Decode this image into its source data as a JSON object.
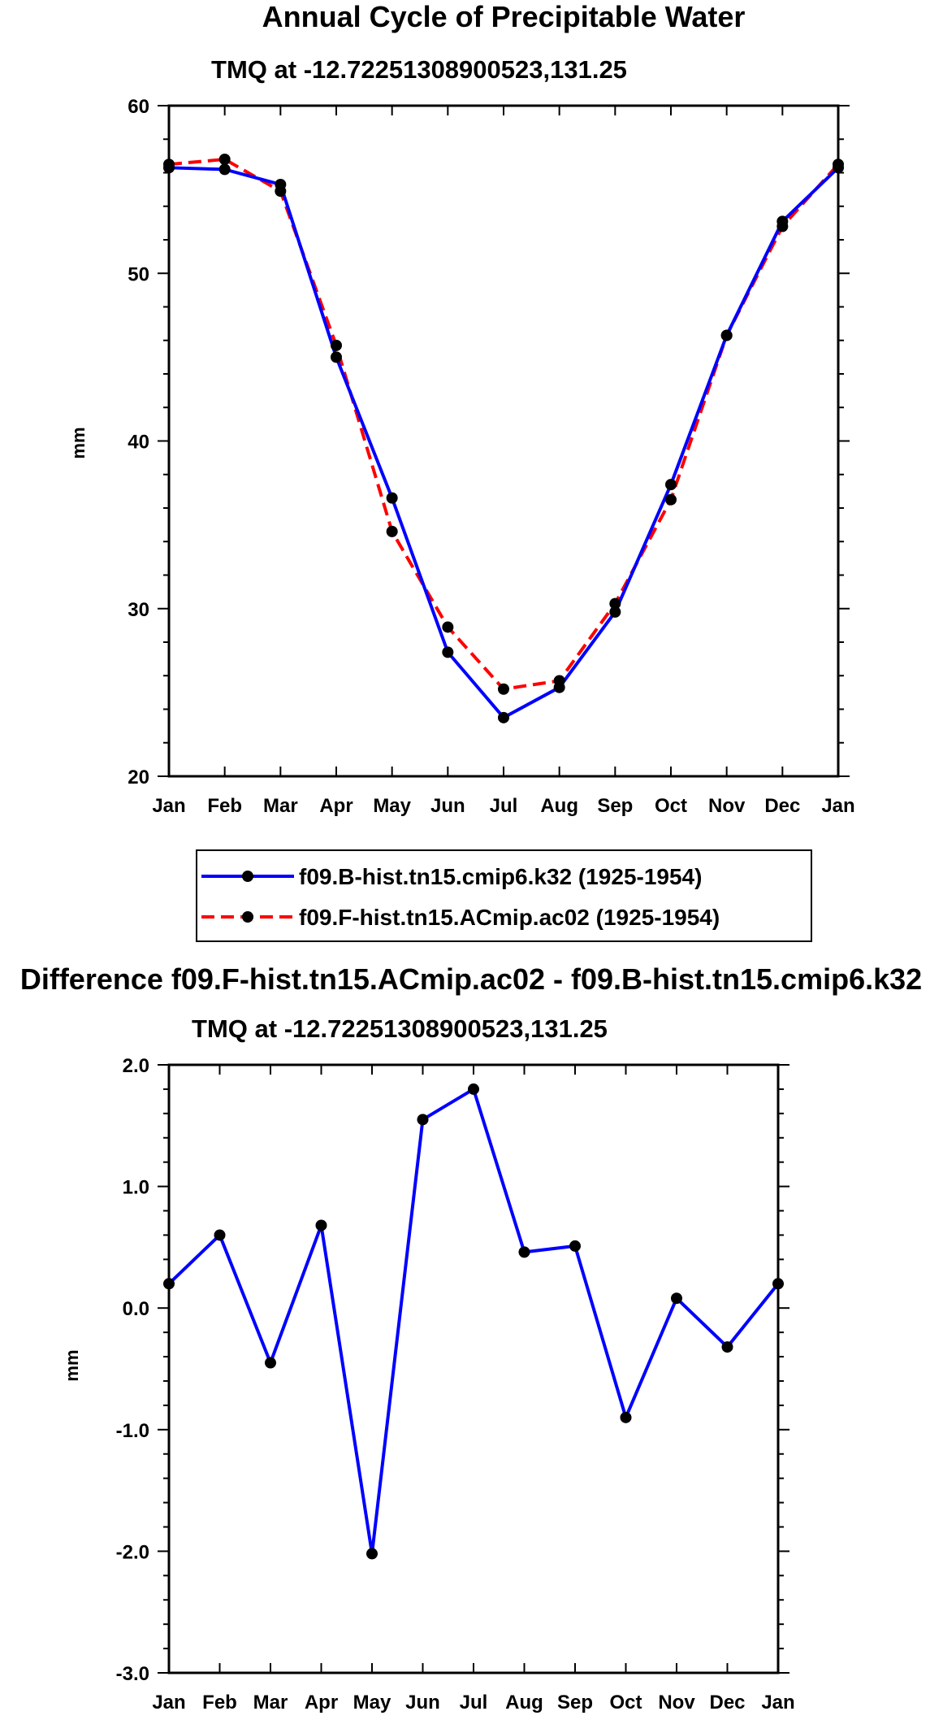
{
  "chart_data": [
    {
      "type": "line",
      "title": "Annual Cycle of Precipitable Water",
      "subtitle": "TMQ at -12.72251308900523,131.25",
      "xlabel": "",
      "ylabel": "mm",
      "categories": [
        "Jan",
        "Feb",
        "Mar",
        "Apr",
        "May",
        "Jun",
        "Jul",
        "Aug",
        "Sep",
        "Oct",
        "Nov",
        "Dec",
        "Jan"
      ],
      "ylim": [
        20,
        60
      ],
      "yticks": [
        "20",
        "30",
        "40",
        "50",
        "60"
      ],
      "series": [
        {
          "name": "f09.B-hist.tn15.cmip6.k32 (1925-1954)",
          "color": "#0000ff",
          "dash": "solid",
          "values": [
            56.3,
            56.2,
            55.3,
            45.0,
            36.6,
            27.4,
            23.5,
            25.3,
            29.8,
            37.4,
            46.3,
            53.1,
            56.3
          ]
        },
        {
          "name": "f09.F-hist.tn15.ACmip.ac02 (1925-1954)",
          "color": "#ff0000",
          "dash": "dashed",
          "values": [
            56.5,
            56.8,
            54.9,
            45.7,
            34.6,
            28.9,
            25.2,
            25.7,
            30.3,
            36.5,
            46.3,
            52.8,
            56.5
          ]
        }
      ]
    },
    {
      "type": "line",
      "title": "Difference f09.F-hist.tn15.ACmip.ac02 - f09.B-hist.tn15.cmip6.k32",
      "subtitle": "TMQ at -12.72251308900523,131.25",
      "xlabel": "",
      "ylabel": "mm",
      "categories": [
        "Jan",
        "Feb",
        "Mar",
        "Apr",
        "May",
        "Jun",
        "Jul",
        "Aug",
        "Sep",
        "Oct",
        "Nov",
        "Dec",
        "Jan"
      ],
      "ylim": [
        -3.0,
        2.0
      ],
      "yticks": [
        "-3.0",
        "-2.0",
        "-1.0",
        "0.0",
        "1.0",
        "2.0"
      ],
      "series": [
        {
          "name": "difference",
          "color": "#0000ff",
          "dash": "solid",
          "values": [
            0.2,
            0.6,
            -0.45,
            0.68,
            -2.02,
            1.55,
            1.8,
            0.46,
            0.51,
            -0.9,
            0.08,
            -0.32,
            0.2
          ]
        }
      ]
    }
  ]
}
